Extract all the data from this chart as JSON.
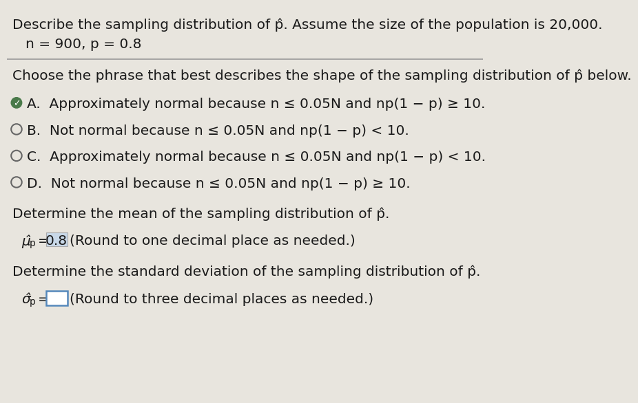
{
  "title_line1": "Describe the sampling distribution of p̂. Assume the size of the population is 20,000.",
  "params": "n = 900, p = 0.8",
  "question": "Choose the phrase that best describes the shape of the sampling distribution of p̂ below.",
  "options": [
    "A.  Approximately normal because n ≤ 0.05N and np(1 − p) ≥ 10.",
    "B.  Not normal because n ≤ 0.05N and np(1 − p) < 10.",
    "C.  Approximately normal because n ≤ 0.05N and np(1 − p) < 10.",
    "D.  Not normal because n ≤ 0.05N and np(1 − p) ≥ 10."
  ],
  "correct_option": 0,
  "mean_question": "Determine the mean of the sampling distribution of p̂.",
  "mean_value": "0.8",
  "mean_note": "(Round to one decimal place as needed.)",
  "std_question": "Determine the standard deviation of the sampling distribution of p̂.",
  "std_note": "(Round to three decimal places as needed.)",
  "bg_color": "#e8e5de",
  "text_color": "#1a1a1a",
  "answer_highlight": "#c8d8e8",
  "input_box_border": "#5588bb",
  "input_box_color": "#ffffff",
  "divider_color": "#999999",
  "radio_color": "#666666",
  "check_bg": "#4a7a4a"
}
